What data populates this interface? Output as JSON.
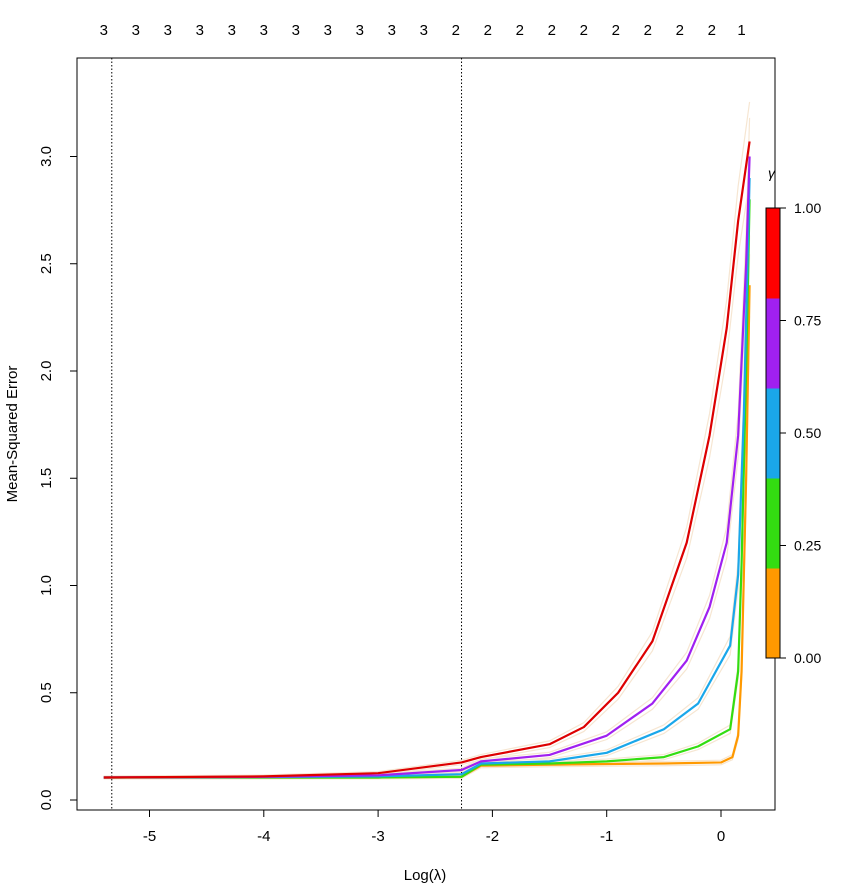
{
  "chart_data": {
    "type": "line",
    "title": "",
    "xlabel": "Log(λ)",
    "ylabel": "Mean-Squared Error",
    "xlim": [
      -5.5,
      0.5
    ],
    "ylim": [
      -0.02,
      3.3
    ],
    "x_ticks": [
      -5,
      -4,
      -3,
      -2,
      -1,
      0
    ],
    "x_tick_labels": [
      "-5",
      "-4",
      "-3",
      "-2",
      "-1",
      "0"
    ],
    "y_ticks": [
      0.0,
      0.5,
      1.0,
      1.5,
      2.0,
      2.5,
      3.0
    ],
    "y_tick_labels": [
      "0.0",
      "0.5",
      "1.0",
      "1.5",
      "2.0",
      "2.5",
      "3.0"
    ],
    "top_axis": {
      "x": [
        -5.4,
        -5.12,
        -4.84,
        -4.56,
        -4.28,
        -4.0,
        -3.72,
        -3.44,
        -3.16,
        -2.88,
        -2.6,
        -2.32,
        -2.04,
        -1.76,
        -1.48,
        -1.2,
        -0.92,
        -0.64,
        -0.36,
        -0.08,
        0.18
      ],
      "labels": [
        "3",
        "3",
        "3",
        "3",
        "3",
        "3",
        "3",
        "3",
        "3",
        "3",
        "3",
        "2",
        "2",
        "2",
        "2",
        "2",
        "2",
        "2",
        "2",
        "2",
        "1"
      ]
    },
    "vlines": [
      -5.33,
      -2.27
    ],
    "grid": false,
    "series": [
      {
        "color": "#ff9900",
        "x": [
          -5.4,
          -4.0,
          -3.0,
          -2.27,
          -2.1,
          -1.5,
          -1.0,
          -0.5,
          0.0,
          0.1,
          0.15,
          0.18,
          0.22,
          0.25
        ],
        "y": [
          0.105,
          0.105,
          0.105,
          0.108,
          0.16,
          0.165,
          0.168,
          0.17,
          0.175,
          0.2,
          0.3,
          0.6,
          1.5,
          2.4
        ]
      },
      {
        "color": "#33dd11",
        "x": [
          -5.4,
          -4.0,
          -3.0,
          -2.27,
          -2.1,
          -1.5,
          -1.0,
          -0.5,
          -0.2,
          0.08,
          0.15,
          0.18,
          0.22,
          0.25
        ],
        "y": [
          0.105,
          0.105,
          0.105,
          0.108,
          0.165,
          0.17,
          0.18,
          0.2,
          0.25,
          0.33,
          0.6,
          1.1,
          2.0,
          2.8
        ]
      },
      {
        "color": "#1aa7ea",
        "x": [
          -5.4,
          -4.0,
          -3.0,
          -2.27,
          -2.1,
          -1.5,
          -1.0,
          -0.5,
          -0.2,
          0.08,
          0.15,
          0.2,
          0.25
        ],
        "y": [
          0.105,
          0.107,
          0.11,
          0.12,
          0.17,
          0.18,
          0.22,
          0.33,
          0.45,
          0.72,
          1.05,
          1.8,
          2.9
        ]
      },
      {
        "color": "#a020f0",
        "x": [
          -5.4,
          -4.0,
          -3.0,
          -2.27,
          -2.1,
          -1.5,
          -1.0,
          -0.6,
          -0.3,
          -0.1,
          0.05,
          0.15,
          0.22,
          0.25
        ],
        "y": [
          0.105,
          0.108,
          0.115,
          0.14,
          0.18,
          0.21,
          0.3,
          0.45,
          0.65,
          0.9,
          1.2,
          1.7,
          2.5,
          3.0
        ]
      },
      {
        "color": "#dd0000",
        "x": [
          -5.4,
          -4.0,
          -3.0,
          -2.27,
          -2.1,
          -1.5,
          -1.2,
          -0.9,
          -0.6,
          -0.3,
          -0.1,
          0.05,
          0.15,
          0.25
        ],
        "y": [
          0.105,
          0.11,
          0.125,
          0.175,
          0.2,
          0.26,
          0.34,
          0.5,
          0.74,
          1.2,
          1.7,
          2.2,
          2.7,
          3.07
        ]
      }
    ],
    "legend": {
      "title": "γ",
      "placement": "right",
      "colors": [
        "#ff9900",
        "#33dd11",
        "#1aa7ea",
        "#a020f0",
        "#ff0000"
      ],
      "ticks": [
        0.0,
        0.25,
        0.5,
        0.75,
        1.0
      ],
      "tick_labels": [
        "0.00",
        "0.25",
        "0.50",
        "0.75",
        "1.00"
      ]
    }
  }
}
